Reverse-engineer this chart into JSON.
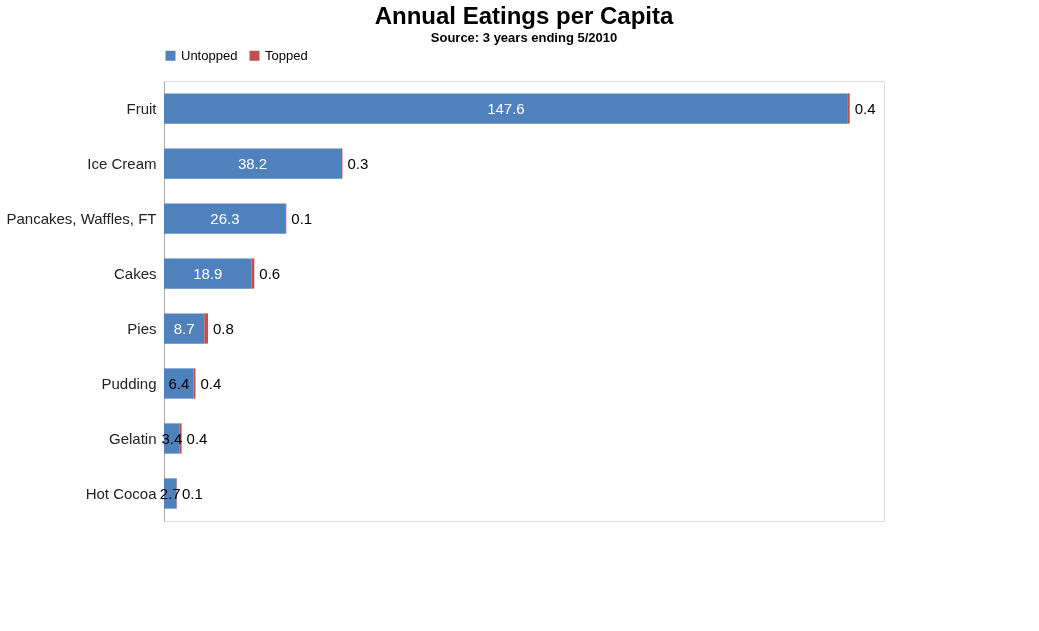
{
  "chart_data": {
    "type": "bar",
    "orientation": "horizontal",
    "stacked": true,
    "title": "Annual Eatings per Capita",
    "subtitle": "Source: 3 years ending 5/2010",
    "categories": [
      "Fruit",
      "Ice Cream",
      "Pancakes, Waffles, FT",
      "Cakes",
      "Pies",
      "Pudding",
      "Gelatin",
      "Hot Cocoa"
    ],
    "series": [
      {
        "name": "Untopped",
        "color": "#4f81bd",
        "values": [
          147.6,
          38.2,
          26.3,
          18.9,
          8.7,
          6.4,
          3.4,
          2.7
        ]
      },
      {
        "name": "Topped",
        "color": "#c0504d",
        "values": [
          0.4,
          0.3,
          0.1,
          0.6,
          0.8,
          0.4,
          0.4,
          0.1
        ]
      }
    ],
    "data_labels": true,
    "legend": "top",
    "grid": false
  }
}
